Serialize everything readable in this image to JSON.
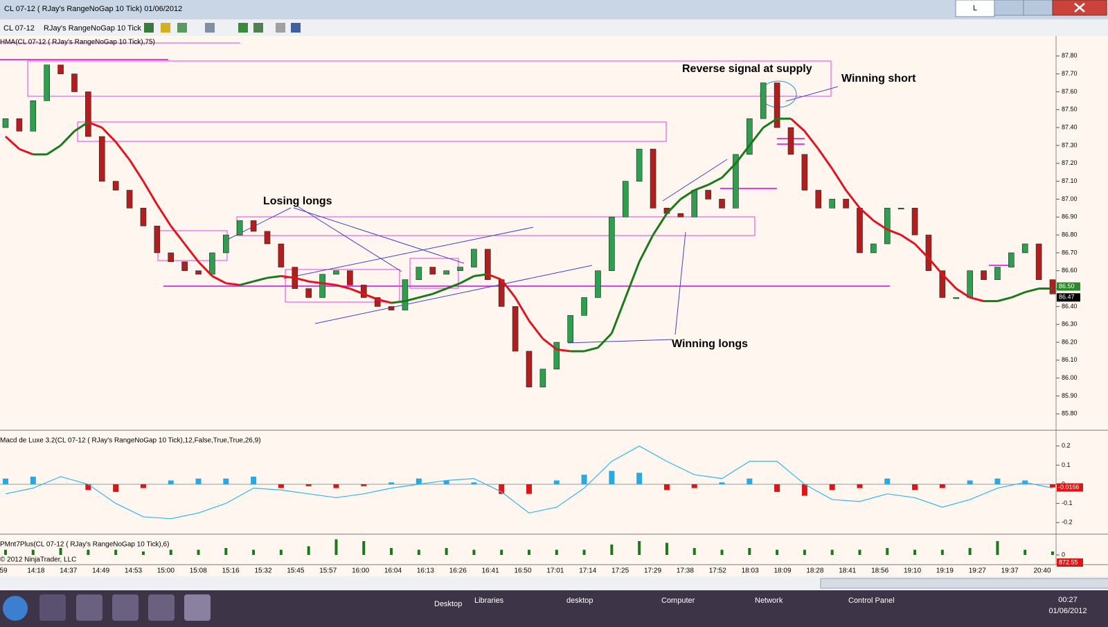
{
  "window": {
    "title": "CL 07-12 ( RJay's RangeNoGap  10 Tick)  01/06/2012",
    "button": "L"
  },
  "toolbar": {
    "instrument": "CL 07-12",
    "period": "RJay's RangeNoGap  10 Tick"
  },
  "taskbar": {
    "items": [
      "Desktop",
      "Libraries",
      "desktop",
      "Computer",
      "Network",
      "Control Panel"
    ],
    "time": "00:27",
    "date": "01/06/2012"
  },
  "copyright": "© 2012 NinjaTrader, LLC",
  "chart_data": [
    {
      "type": "candlestick",
      "label": "HMA(CL 07-12 ( RJay's RangeNoGap  10 Tick),75)",
      "annotations": [
        "Reverse signal at supply",
        "Winning short",
        "Losing longs",
        "Winning longs"
      ],
      "x_labels": [
        "59",
        "14:18",
        "14:37",
        "14:49",
        "14:53",
        "15:00",
        "15:08",
        "15:16",
        "15:32",
        "15:45",
        "15:57",
        "16:00",
        "16:04",
        "16:13",
        "16:26",
        "16:41",
        "16:50",
        "17:01",
        "17:14",
        "17:25",
        "17:29",
        "17:38",
        "17:52",
        "18:03",
        "18:09",
        "18:28",
        "18:41",
        "18:56",
        "19:10",
        "19:19",
        "19:27",
        "19:37",
        "20:40"
      ],
      "open": [
        87.4,
        87.45,
        87.38,
        87.55,
        87.75,
        87.7,
        87.6,
        87.35,
        87.1,
        87.05,
        86.95,
        86.85,
        86.7,
        86.65,
        86.6,
        86.58,
        86.7,
        86.8,
        86.88,
        86.82,
        86.75,
        86.62,
        86.5,
        86.45,
        86.58,
        86.6,
        86.52,
        86.45,
        86.4,
        86.38,
        86.55,
        86.62,
        86.58,
        86.6,
        86.62,
        86.72,
        86.55,
        86.4,
        86.15,
        85.95,
        86.05,
        86.2,
        86.35,
        86.45,
        86.6,
        86.9,
        87.1,
        87.28,
        86.95,
        86.92,
        86.9,
        87.05,
        87.0,
        86.95,
        87.25,
        87.45,
        87.65,
        87.4,
        87.25,
        87.05,
        86.95,
        87.0,
        86.95,
        86.7,
        86.75,
        86.95,
        86.95,
        86.8,
        86.6,
        86.45,
        86.45,
        86.6,
        86.55,
        86.62,
        86.7,
        86.75,
        86.55
      ],
      "close": [
        87.45,
        87.38,
        87.55,
        87.75,
        87.7,
        87.6,
        87.35,
        87.1,
        87.05,
        86.95,
        86.85,
        86.7,
        86.65,
        86.6,
        86.58,
        86.7,
        86.8,
        86.88,
        86.82,
        86.75,
        86.62,
        86.5,
        86.45,
        86.58,
        86.6,
        86.52,
        86.45,
        86.4,
        86.38,
        86.55,
        86.62,
        86.58,
        86.6,
        86.62,
        86.72,
        86.55,
        86.4,
        86.15,
        85.95,
        86.05,
        86.2,
        86.35,
        86.45,
        86.6,
        86.9,
        87.1,
        87.28,
        86.95,
        86.92,
        86.9,
        87.05,
        87.0,
        86.95,
        87.25,
        87.45,
        87.65,
        87.4,
        87.25,
        87.05,
        86.95,
        87.0,
        86.95,
        86.7,
        86.75,
        86.95,
        86.95,
        86.8,
        86.6,
        86.45,
        86.45,
        86.6,
        86.55,
        86.62,
        86.7,
        86.75,
        86.55,
        86.47
      ],
      "up_color": "#2e9e4f",
      "down_color": "#b01e1e",
      "hma": [
        87.35,
        87.28,
        87.25,
        87.25,
        87.3,
        87.38,
        87.43,
        87.4,
        87.32,
        87.22,
        87.1,
        86.97,
        86.85,
        86.75,
        86.65,
        86.57,
        86.53,
        86.52,
        86.54,
        86.56,
        86.57,
        86.56,
        86.54,
        86.53,
        86.52,
        86.5,
        86.47,
        86.44,
        86.42,
        86.43,
        86.45,
        86.47,
        86.5,
        86.53,
        86.57,
        86.58,
        86.55,
        86.45,
        86.32,
        86.22,
        86.16,
        86.15,
        86.15,
        86.17,
        86.25,
        86.45,
        86.65,
        86.8,
        86.92,
        87.0,
        87.05,
        87.08,
        87.12,
        87.2,
        87.3,
        87.4,
        87.45,
        87.45,
        87.38,
        87.28,
        87.17,
        87.05,
        86.95,
        86.88,
        86.83,
        86.8,
        86.75,
        86.67,
        86.58,
        86.5,
        86.45,
        86.43,
        86.43,
        86.45,
        86.48,
        86.5,
        86.5
      ],
      "hma_up_color": "#1a7a1a",
      "hma_down_color": "#e0141e",
      "price_labels": [
        {
          "value": 86.5,
          "label": "86.50"
        },
        {
          "value": 86.47,
          "label": "86.47"
        }
      ],
      "ylim": [
        85.72,
        87.9
      ],
      "yticks": [
        {
          "value": 85.8,
          "label": "85.80"
        },
        {
          "value": 85.9,
          "label": "85.90"
        },
        {
          "value": 86.0,
          "label": "86.00"
        },
        {
          "value": 86.1,
          "label": "86.10"
        },
        {
          "value": 86.2,
          "label": "86.20"
        },
        {
          "value": 86.3,
          "label": "86.30"
        },
        {
          "value": 86.4,
          "label": "86.40"
        },
        {
          "value": 86.5,
          "label": "86.50"
        },
        {
          "value": 86.6,
          "label": "86.60"
        },
        {
          "value": 86.7,
          "label": "86.70"
        },
        {
          "value": 86.8,
          "label": "86.80"
        },
        {
          "value": 86.9,
          "label": "86.90"
        },
        {
          "value": 87.0,
          "label": "87.00"
        },
        {
          "value": 87.1,
          "label": "87.10"
        },
        {
          "value": 87.2,
          "label": "87.20"
        },
        {
          "value": 87.3,
          "label": "87.30"
        },
        {
          "value": 87.4,
          "label": "87.40"
        },
        {
          "value": 87.5,
          "label": "87.50"
        },
        {
          "value": 87.6,
          "label": "87.60"
        },
        {
          "value": 87.7,
          "label": "87.70"
        },
        {
          "value": 87.8,
          "label": "87.80"
        }
      ]
    },
    {
      "type": "macd",
      "label": "Macd de Luxe 3.2(CL 07-12 ( RJay's RangeNoGap  10 Tick),12,False,True,True,26,9)",
      "macd": [
        -0.05,
        -0.02,
        0.04,
        0.0,
        -0.1,
        -0.17,
        -0.18,
        -0.15,
        -0.1,
        -0.02,
        -0.03,
        -0.05,
        -0.07,
        -0.05,
        -0.02,
        0.0,
        0.02,
        0.03,
        -0.04,
        -0.15,
        -0.12,
        -0.02,
        0.12,
        0.2,
        0.12,
        0.05,
        0.03,
        0.12,
        0.12,
        0.0,
        -0.08,
        -0.09,
        -0.05,
        -0.07,
        -0.12,
        -0.08,
        -0.02,
        0.01,
        -0.02
      ],
      "macd_color": "#2fb5ef",
      "histogram": [
        0.03,
        0.04,
        0.0,
        -0.03,
        -0.04,
        -0.02,
        0.02,
        0.03,
        0.03,
        0.04,
        -0.02,
        -0.01,
        -0.02,
        -0.01,
        0.01,
        0.03,
        0.02,
        0.01,
        -0.05,
        -0.05,
        0.02,
        0.05,
        0.07,
        0.06,
        -0.03,
        -0.02,
        0.01,
        0.03,
        -0.04,
        -0.06,
        -0.03,
        -0.02,
        0.03,
        -0.03,
        -0.02,
        0.02,
        0.03,
        0.02,
        -0.0166
      ],
      "hist_up_color": "#29a9e0",
      "hist_down_color": "#e01414",
      "last_value": {
        "value": -0.0166,
        "label": "-0.0166"
      },
      "ylim": [
        -0.25,
        0.25
      ],
      "yticks": [
        -0.2,
        -0.1,
        0,
        0.1,
        0.2
      ]
    },
    {
      "type": "bar",
      "label": "PMnt7Plus(CL 07-12 ( RJay's RangeNoGap  10 Tick),6)",
      "values": [
        0.3,
        0.3,
        0.4,
        0.3,
        0.3,
        0.2,
        0.3,
        0.3,
        0.4,
        0.3,
        0.3,
        0.5,
        0.9,
        0.8,
        0.4,
        0.3,
        0.4,
        0.3,
        0.3,
        0.3,
        0.3,
        0.3,
        0.6,
        0.8,
        0.7,
        0.4,
        0.3,
        0.4,
        0.3,
        0.3,
        0.3,
        0.3,
        0.4,
        0.3,
        0.3,
        0.4,
        0.8,
        0.3,
        0.2
      ],
      "color": "#1a7a1a",
      "last_value": {
        "value": 872.55,
        "label": "872.55"
      },
      "ylim": [
        0,
        1
      ],
      "yticks": [
        0
      ]
    }
  ]
}
